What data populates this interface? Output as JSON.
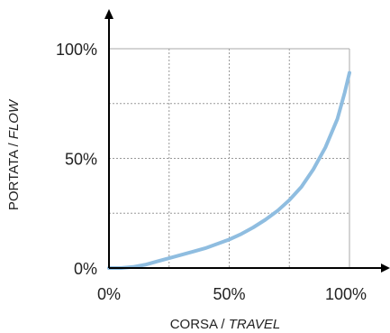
{
  "chart_data": {
    "type": "line",
    "xlabel_main": "CORSA / ",
    "xlabel_italic": "TRAVEL",
    "ylabel_main": "PORTATA / ",
    "ylabel_italic": "FLOW",
    "x_ticks": [
      "0%",
      "50%",
      "100%"
    ],
    "y_ticks": [
      "0%",
      "50%",
      "100%"
    ],
    "xlim": [
      0,
      100
    ],
    "ylim": [
      0,
      100
    ],
    "grid": true,
    "grid_x": [
      25,
      50,
      75,
      100
    ],
    "grid_y": [
      25,
      50,
      75,
      100
    ],
    "series": [
      {
        "color": "#8fbde0",
        "x": [
          0,
          5,
          10,
          15,
          20,
          25,
          30,
          35,
          40,
          45,
          50,
          55,
          60,
          65,
          70,
          75,
          80,
          85,
          90,
          95,
          98,
          100
        ],
        "y": [
          0,
          0,
          0.5,
          1.5,
          3,
          4.5,
          6,
          7.5,
          9,
          11,
          13,
          15.5,
          18.5,
          22,
          26,
          31,
          37,
          45,
          55,
          68,
          80,
          89
        ]
      }
    ]
  },
  "colors": {
    "axis": "#000000",
    "grid": "#999999",
    "frame": "#aaaaaa"
  }
}
